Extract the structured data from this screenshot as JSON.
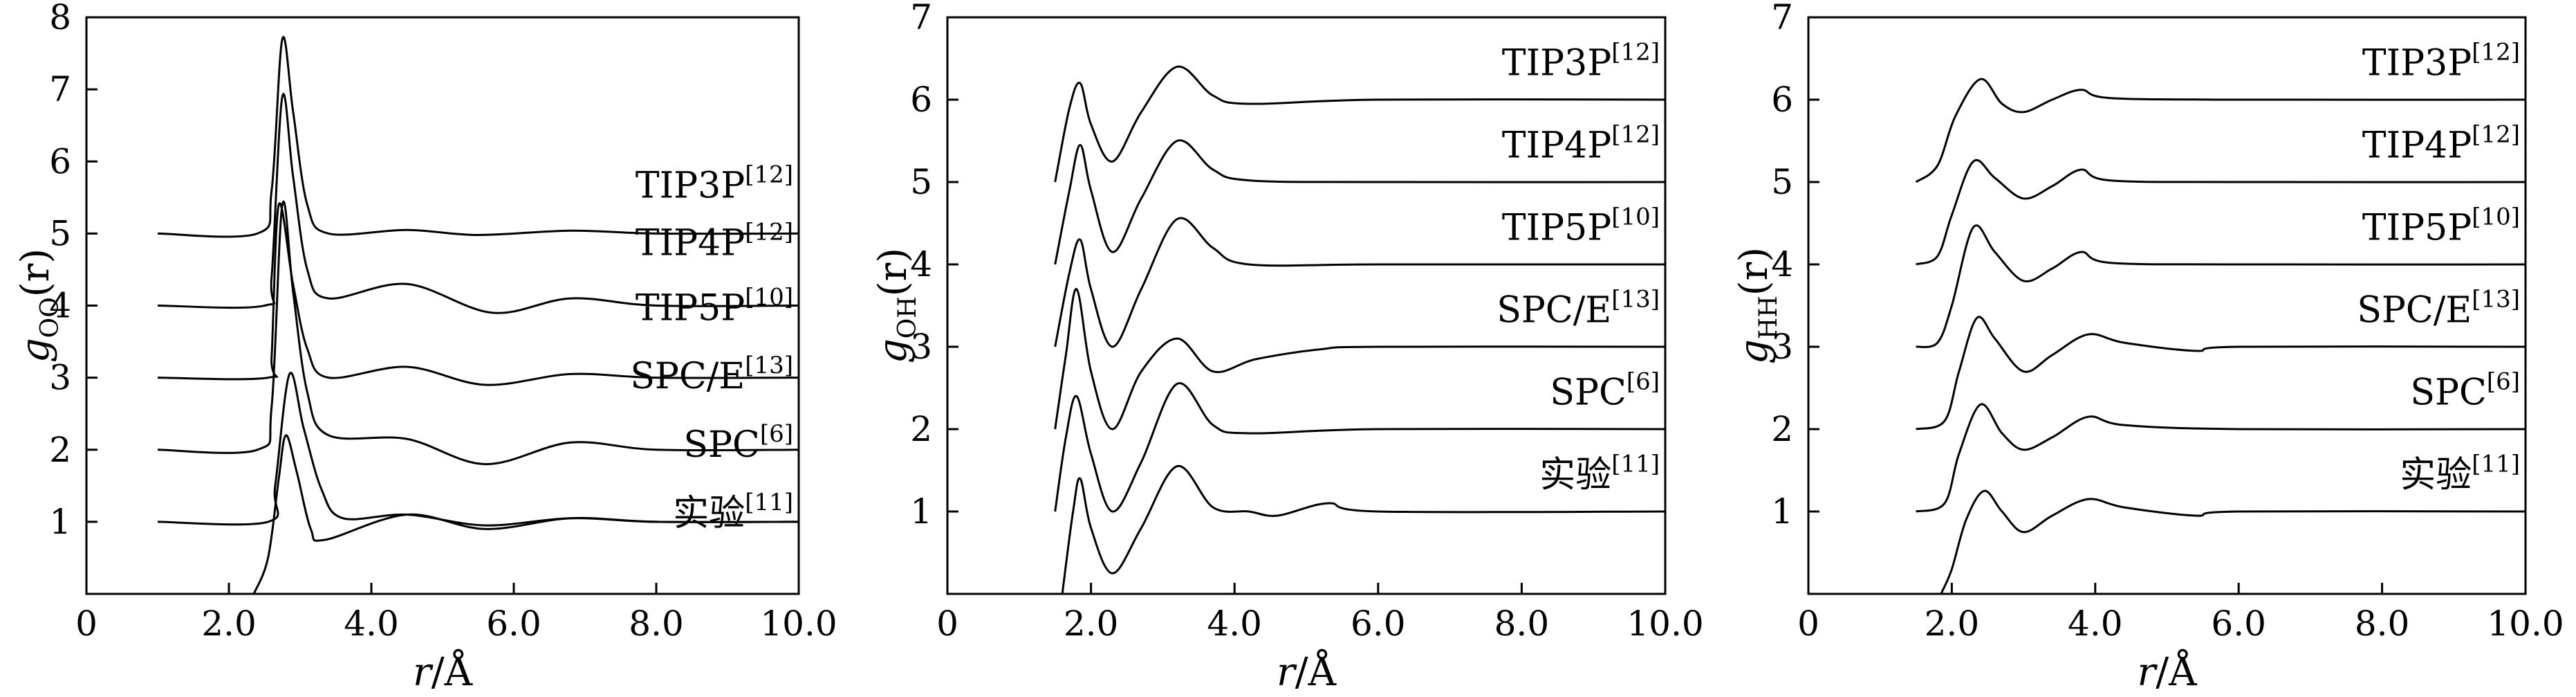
{
  "chart_data": [
    {
      "type": "line",
      "panel": "O-O",
      "ylabel": "g_OO(r)",
      "ylabel_parts": {
        "g": "g",
        "sub": "OO",
        "arg": "(r)"
      },
      "xlabel": "r/Å",
      "xlabel_parts": {
        "var": "r",
        "unit": "/Å"
      },
      "xlim": [
        0,
        10.0
      ],
      "ylim": [
        0,
        8
      ],
      "x_ticks": [
        0,
        2.0,
        4.0,
        6.0,
        8.0,
        10.0
      ],
      "x_tick_labels": [
        "0",
        "2.0",
        "4.0",
        "6.0",
        "8.0",
        "10.0"
      ],
      "y_ticks": [
        1,
        2,
        3,
        4,
        5,
        6,
        7,
        8
      ],
      "y_tick_labels": [
        "1",
        "2",
        "3",
        "4",
        "5",
        "6",
        "7",
        "8"
      ],
      "series": [
        {
          "name": "TIP3P",
          "label_main": "TIP3P",
          "label_ref": "[12]",
          "offset": 5,
          "label_y": 5.5,
          "points": [
            [
              1.0,
              0
            ],
            [
              2.4,
              0
            ],
            [
              2.6,
              0.6
            ],
            [
              2.75,
              2.7
            ],
            [
              2.9,
              1.7
            ],
            [
              3.1,
              0.4
            ],
            [
              3.4,
              0.0
            ],
            [
              4.5,
              0.05
            ],
            [
              5.5,
              -0.02
            ],
            [
              6.8,
              0.04
            ],
            [
              8.0,
              0
            ],
            [
              10.0,
              0
            ]
          ]
        },
        {
          "name": "TIP4P",
          "label_main": "TIP4P",
          "label_ref": "[12]",
          "offset": 4,
          "label_y": 4.7,
          "points": [
            [
              1.0,
              0
            ],
            [
              2.5,
              0
            ],
            [
              2.6,
              0.4
            ],
            [
              2.75,
              2.9
            ],
            [
              2.9,
              1.8
            ],
            [
              3.1,
              0.5
            ],
            [
              3.4,
              0.1
            ],
            [
              4.5,
              0.3
            ],
            [
              5.7,
              -0.1
            ],
            [
              6.8,
              0.1
            ],
            [
              8.0,
              0
            ],
            [
              10.0,
              0
            ]
          ]
        },
        {
          "name": "TIP5P",
          "label_main": "TIP5P",
          "label_ref": "[10]",
          "offset": 3,
          "label_y": 3.8,
          "points": [
            [
              1.0,
              0
            ],
            [
              2.55,
              0
            ],
            [
              2.6,
              0.3
            ],
            [
              2.7,
              2.4
            ],
            [
              2.9,
              1.3
            ],
            [
              3.1,
              0.4
            ],
            [
              3.4,
              0.0
            ],
            [
              4.5,
              0.15
            ],
            [
              5.6,
              -0.1
            ],
            [
              6.8,
              0.05
            ],
            [
              8.0,
              0
            ],
            [
              10.0,
              0
            ]
          ]
        },
        {
          "name": "SPC/E",
          "label_main": "SPC/E",
          "label_ref": "[13]",
          "offset": 2,
          "label_y": 2.85,
          "points": [
            [
              1.0,
              0
            ],
            [
              2.4,
              0
            ],
            [
              2.6,
              0.6
            ],
            [
              2.75,
              3.4
            ],
            [
              2.9,
              2.2
            ],
            [
              3.1,
              0.8
            ],
            [
              3.4,
              0.2
            ],
            [
              4.5,
              0.15
            ],
            [
              5.6,
              -0.2
            ],
            [
              6.8,
              0.1
            ],
            [
              8.0,
              0
            ],
            [
              10.0,
              0
            ]
          ]
        },
        {
          "name": "SPC",
          "label_main": "SPC",
          "label_ref": "[6]",
          "offset": 1,
          "label_y": 1.9,
          "points": [
            [
              1.0,
              0
            ],
            [
              2.55,
              0
            ],
            [
              2.65,
              0.5
            ],
            [
              2.85,
              2.05
            ],
            [
              3.05,
              1.3
            ],
            [
              3.3,
              0.45
            ],
            [
              3.6,
              0.05
            ],
            [
              4.5,
              0.1
            ],
            [
              5.6,
              -0.05
            ],
            [
              6.8,
              0.05
            ],
            [
              8.0,
              0
            ],
            [
              10.0,
              0
            ]
          ]
        },
        {
          "name": "实验",
          "label_main": "实验",
          "label_ref": "[11]",
          "offset": 0,
          "label_y": 0.95,
          "points": [
            [
              2.35,
              0
            ],
            [
              2.55,
              0.5
            ],
            [
              2.7,
              1.6
            ],
            [
              2.8,
              2.2
            ],
            [
              2.95,
              1.7
            ],
            [
              3.15,
              0.9
            ],
            [
              3.35,
              0.75
            ],
            [
              4.5,
              1.1
            ],
            [
              5.6,
              0.9
            ],
            [
              6.8,
              1.05
            ],
            [
              8.0,
              1.0
            ],
            [
              10.0,
              1.0
            ]
          ]
        }
      ]
    },
    {
      "type": "line",
      "panel": "O-H",
      "ylabel": "g_OH(r)",
      "ylabel_parts": {
        "g": "g",
        "sub": "OH",
        "arg": "(r)"
      },
      "xlabel": "r/Å",
      "xlabel_parts": {
        "var": "r",
        "unit": "/Å"
      },
      "xlim": [
        0,
        10.0
      ],
      "ylim": [
        0,
        7
      ],
      "x_ticks": [
        0,
        2.0,
        4.0,
        6.0,
        8.0,
        10.0
      ],
      "x_tick_labels": [
        "0",
        "2.0",
        "4.0",
        "6.0",
        "8.0",
        "10.0"
      ],
      "y_ticks": [
        1,
        2,
        3,
        4,
        5,
        6,
        7
      ],
      "y_tick_labels": [
        "1",
        "2",
        "3",
        "4",
        "5",
        "6",
        "7"
      ],
      "series": [
        {
          "name": "TIP3P",
          "label_main": "TIP3P",
          "label_ref": "[12]",
          "offset": 5,
          "label_y": 6.3,
          "points": [
            [
              1.5,
              0
            ],
            [
              1.7,
              0.9
            ],
            [
              1.85,
              1.2
            ],
            [
              2.0,
              0.7
            ],
            [
              2.3,
              0.25
            ],
            [
              2.7,
              0.85
            ],
            [
              3.2,
              1.4
            ],
            [
              3.7,
              1.05
            ],
            [
              4.2,
              0.95
            ],
            [
              6.0,
              1.0
            ],
            [
              10.0,
              1.0
            ]
          ]
        },
        {
          "name": "TIP4P",
          "label_main": "TIP4P",
          "label_ref": "[12]",
          "offset": 4,
          "label_y": 5.3,
          "points": [
            [
              1.5,
              0
            ],
            [
              1.7,
              0.9
            ],
            [
              1.85,
              1.45
            ],
            [
              2.0,
              0.9
            ],
            [
              2.3,
              0.15
            ],
            [
              2.7,
              0.8
            ],
            [
              3.2,
              1.5
            ],
            [
              3.7,
              1.15
            ],
            [
              4.2,
              1.02
            ],
            [
              6.0,
              1.0
            ],
            [
              10.0,
              1.0
            ]
          ]
        },
        {
          "name": "TIP5P",
          "label_main": "TIP5P",
          "label_ref": "[10]",
          "offset": 3,
          "label_y": 4.3,
          "points": [
            [
              1.5,
              0
            ],
            [
              1.7,
              0.9
            ],
            [
              1.85,
              1.3
            ],
            [
              2.0,
              0.7
            ],
            [
              2.3,
              0.0
            ],
            [
              2.7,
              0.7
            ],
            [
              3.2,
              1.55
            ],
            [
              3.7,
              1.2
            ],
            [
              4.2,
              1.0
            ],
            [
              6.0,
              1.0
            ],
            [
              10.0,
              1.0
            ]
          ]
        },
        {
          "name": "SPC/E",
          "label_main": "SPC/E",
          "label_ref": "[13]",
          "offset": 2,
          "label_y": 3.3,
          "points": [
            [
              1.5,
              0
            ],
            [
              1.65,
              0.9
            ],
            [
              1.8,
              1.7
            ],
            [
              2.0,
              0.7
            ],
            [
              2.3,
              0.0
            ],
            [
              2.7,
              0.7
            ],
            [
              3.2,
              1.1
            ],
            [
              3.7,
              0.7
            ],
            [
              4.3,
              0.85
            ],
            [
              5.2,
              0.97
            ],
            [
              6.0,
              1.0
            ],
            [
              10.0,
              1.0
            ]
          ]
        },
        {
          "name": "SPC",
          "label_main": "SPC",
          "label_ref": "[6]",
          "offset": 1,
          "label_y": 2.3,
          "points": [
            [
              1.5,
              0
            ],
            [
              1.65,
              0.9
            ],
            [
              1.8,
              1.4
            ],
            [
              2.0,
              0.7
            ],
            [
              2.3,
              0.0
            ],
            [
              2.7,
              0.6
            ],
            [
              3.2,
              1.55
            ],
            [
              3.7,
              1.05
            ],
            [
              4.2,
              0.95
            ],
            [
              6.0,
              1.0
            ],
            [
              10.0,
              1.0
            ]
          ]
        },
        {
          "name": "实验",
          "label_main": "实验",
          "label_ref": "[11]",
          "offset": 0,
          "label_y": 1.3,
          "points": [
            [
              1.6,
              0
            ],
            [
              1.75,
              1.0
            ],
            [
              1.85,
              1.4
            ],
            [
              2.0,
              0.8
            ],
            [
              2.3,
              0.25
            ],
            [
              2.7,
              0.8
            ],
            [
              3.2,
              1.55
            ],
            [
              3.7,
              1.05
            ],
            [
              4.2,
              1.0
            ],
            [
              4.6,
              0.95
            ],
            [
              5.3,
              1.1
            ],
            [
              6.0,
              1.0
            ],
            [
              10.0,
              1.0
            ]
          ]
        }
      ]
    },
    {
      "type": "line",
      "panel": "H-H",
      "ylabel": "g_HH(r)",
      "ylabel_parts": {
        "g": "g",
        "sub": "HH",
        "arg": "(r)"
      },
      "xlabel": "r/Å",
      "xlabel_parts": {
        "var": "r",
        "unit": "/Å"
      },
      "xlim": [
        0,
        10.0
      ],
      "ylim": [
        0,
        7
      ],
      "x_ticks": [
        0,
        2.0,
        4.0,
        6.0,
        8.0,
        10.0
      ],
      "x_tick_labels": [
        "0",
        "2.0",
        "4.0",
        "6.0",
        "8.0",
        "10.0"
      ],
      "y_ticks": [
        1,
        2,
        3,
        4,
        5,
        6,
        7
      ],
      "y_tick_labels": [
        "1",
        "2",
        "3",
        "4",
        "5",
        "6",
        "7"
      ],
      "series": [
        {
          "name": "TIP3P",
          "label_main": "TIP3P",
          "label_ref": "[12]",
          "offset": 5,
          "label_y": 6.3,
          "points": [
            [
              1.5,
              0
            ],
            [
              1.8,
              0.2
            ],
            [
              2.05,
              0.8
            ],
            [
              2.4,
              1.25
            ],
            [
              2.7,
              0.95
            ],
            [
              3.0,
              0.85
            ],
            [
              3.4,
              1.0
            ],
            [
              3.8,
              1.12
            ],
            [
              4.2,
              1.02
            ],
            [
              6.0,
              1.0
            ],
            [
              10.0,
              1.0
            ]
          ]
        },
        {
          "name": "TIP4P",
          "label_main": "TIP4P",
          "label_ref": "[12]",
          "offset": 4,
          "label_y": 5.3,
          "points": [
            [
              1.5,
              0
            ],
            [
              1.8,
              0.1
            ],
            [
              2.0,
              0.6
            ],
            [
              2.3,
              1.25
            ],
            [
              2.6,
              1.05
            ],
            [
              3.0,
              0.8
            ],
            [
              3.4,
              0.95
            ],
            [
              3.8,
              1.15
            ],
            [
              4.2,
              1.02
            ],
            [
              6.0,
              1.0
            ],
            [
              10.0,
              1.0
            ]
          ]
        },
        {
          "name": "TIP5P",
          "label_main": "TIP5P",
          "label_ref": "[10]",
          "offset": 3,
          "label_y": 4.3,
          "points": [
            [
              1.5,
              0
            ],
            [
              1.8,
              0.05
            ],
            [
              2.0,
              0.5
            ],
            [
              2.3,
              1.45
            ],
            [
              2.6,
              1.15
            ],
            [
              3.0,
              0.8
            ],
            [
              3.4,
              0.95
            ],
            [
              3.8,
              1.15
            ],
            [
              4.2,
              1.02
            ],
            [
              6.0,
              1.0
            ],
            [
              10.0,
              1.0
            ]
          ]
        },
        {
          "name": "SPC/E",
          "label_main": "SPC/E",
          "label_ref": "[13]",
          "offset": 2,
          "label_y": 3.3,
          "points": [
            [
              1.5,
              0
            ],
            [
              1.9,
              0.1
            ],
            [
              2.1,
              0.7
            ],
            [
              2.35,
              1.35
            ],
            [
              2.6,
              1.1
            ],
            [
              3.0,
              0.7
            ],
            [
              3.4,
              0.9
            ],
            [
              3.9,
              1.15
            ],
            [
              4.4,
              1.05
            ],
            [
              5.4,
              0.95
            ],
            [
              6.0,
              1.0
            ],
            [
              10.0,
              1.0
            ]
          ]
        },
        {
          "name": "SPC",
          "label_main": "SPC",
          "label_ref": "[6]",
          "offset": 1,
          "label_y": 2.3,
          "points": [
            [
              1.5,
              0
            ],
            [
              1.9,
              0.1
            ],
            [
              2.1,
              0.7
            ],
            [
              2.4,
              1.3
            ],
            [
              2.7,
              0.95
            ],
            [
              3.0,
              0.75
            ],
            [
              3.4,
              0.9
            ],
            [
              3.9,
              1.15
            ],
            [
              4.4,
              1.05
            ],
            [
              6.0,
              1.0
            ],
            [
              10.0,
              1.0
            ]
          ]
        },
        {
          "name": "实验",
          "label_main": "实验",
          "label_ref": "[11]",
          "offset": 0,
          "label_y": 1.3,
          "points": [
            [
              1.85,
              0
            ],
            [
              2.0,
              0.3
            ],
            [
              2.2,
              0.9
            ],
            [
              2.45,
              1.25
            ],
            [
              2.7,
              1.0
            ],
            [
              3.0,
              0.75
            ],
            [
              3.4,
              0.95
            ],
            [
              3.9,
              1.15
            ],
            [
              4.4,
              1.05
            ],
            [
              5.4,
              0.95
            ],
            [
              6.0,
              1.0
            ],
            [
              10.0,
              1.0
            ]
          ]
        }
      ]
    }
  ]
}
